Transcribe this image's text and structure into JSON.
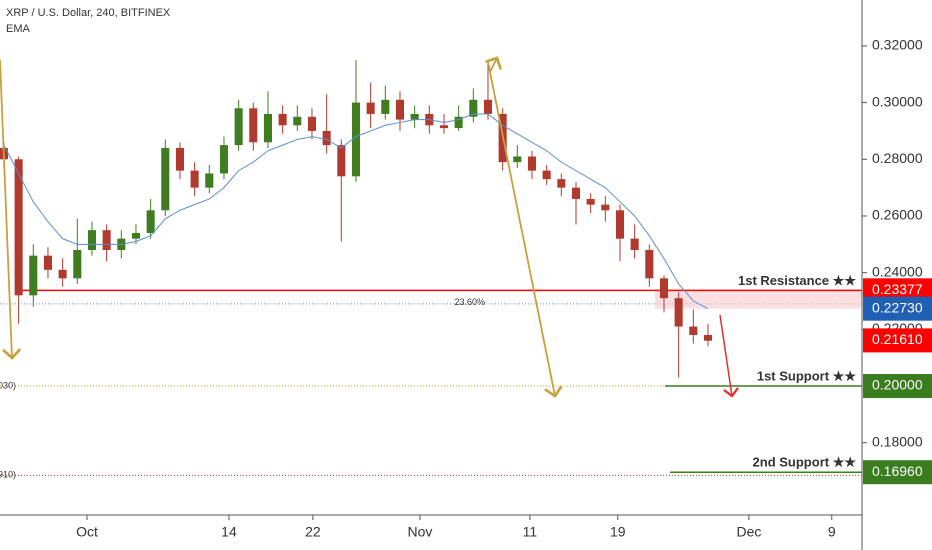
{
  "chart_data": {
    "type": "candlestick",
    "title": "XRP / U.S. Dollar, 240, BITFINEX",
    "up_color": "#3f7d20",
    "down_color": "#b03a2e",
    "candles": [
      [
        0.284,
        0.286,
        0.276,
        0.28
      ],
      [
        0.28,
        0.281,
        0.222,
        0.232
      ],
      [
        0.232,
        0.25,
        0.228,
        0.246
      ],
      [
        0.246,
        0.249,
        0.238,
        0.241
      ],
      [
        0.241,
        0.245,
        0.235,
        0.238
      ],
      [
        0.238,
        0.259,
        0.236,
        0.248
      ],
      [
        0.248,
        0.258,
        0.246,
        0.255
      ],
      [
        0.255,
        0.257,
        0.244,
        0.248
      ],
      [
        0.248,
        0.255,
        0.245,
        0.252
      ],
      [
        0.252,
        0.257,
        0.25,
        0.254
      ],
      [
        0.254,
        0.266,
        0.252,
        0.262
      ],
      [
        0.262,
        0.287,
        0.26,
        0.284
      ],
      [
        0.284,
        0.286,
        0.273,
        0.276
      ],
      [
        0.276,
        0.279,
        0.267,
        0.27
      ],
      [
        0.27,
        0.278,
        0.268,
        0.275
      ],
      [
        0.275,
        0.288,
        0.273,
        0.285
      ],
      [
        0.285,
        0.301,
        0.283,
        0.298
      ],
      [
        0.298,
        0.3,
        0.283,
        0.286
      ],
      [
        0.286,
        0.304,
        0.284,
        0.296
      ],
      [
        0.296,
        0.299,
        0.289,
        0.292
      ],
      [
        0.292,
        0.299,
        0.29,
        0.295
      ],
      [
        0.295,
        0.298,
        0.287,
        0.29
      ],
      [
        0.29,
        0.303,
        0.282,
        0.285
      ],
      [
        0.285,
        0.287,
        0.251,
        0.274
      ],
      [
        0.274,
        0.315,
        0.272,
        0.3
      ],
      [
        0.3,
        0.307,
        0.291,
        0.296
      ],
      [
        0.296,
        0.306,
        0.294,
        0.301
      ],
      [
        0.301,
        0.304,
        0.29,
        0.294
      ],
      [
        0.294,
        0.299,
        0.291,
        0.296
      ],
      [
        0.296,
        0.299,
        0.289,
        0.292
      ],
      [
        0.292,
        0.296,
        0.289,
        0.291
      ],
      [
        0.291,
        0.299,
        0.29,
        0.295
      ],
      [
        0.295,
        0.305,
        0.293,
        0.301
      ],
      [
        0.301,
        0.315,
        0.294,
        0.296
      ],
      [
        0.296,
        0.298,
        0.276,
        0.279
      ],
      [
        0.279,
        0.285,
        0.277,
        0.281
      ],
      [
        0.281,
        0.283,
        0.273,
        0.276
      ],
      [
        0.276,
        0.278,
        0.271,
        0.273
      ],
      [
        0.273,
        0.275,
        0.267,
        0.27
      ],
      [
        0.27,
        0.272,
        0.257,
        0.266
      ],
      [
        0.266,
        0.268,
        0.261,
        0.264
      ],
      [
        0.264,
        0.267,
        0.258,
        0.262
      ],
      [
        0.262,
        0.264,
        0.244,
        0.252
      ],
      [
        0.252,
        0.257,
        0.245,
        0.248
      ],
      [
        0.248,
        0.25,
        0.235,
        0.238
      ],
      [
        0.238,
        0.239,
        0.226,
        0.231
      ],
      [
        0.231,
        0.233,
        0.203,
        0.221
      ],
      [
        0.221,
        0.227,
        0.215,
        0.218
      ],
      [
        0.218,
        0.222,
        0.214,
        0.216
      ]
    ],
    "ema": {
      "name": "EMA",
      "color": "#5b8fd0",
      "last_label": "0.22730",
      "values": [
        0.285,
        0.275,
        0.265,
        0.258,
        0.252,
        0.25,
        0.25,
        0.25,
        0.25,
        0.251,
        0.253,
        0.259,
        0.262,
        0.264,
        0.266,
        0.27,
        0.276,
        0.279,
        0.283,
        0.285,
        0.287,
        0.288,
        0.287,
        0.284,
        0.288,
        0.29,
        0.292,
        0.293,
        0.294,
        0.294,
        0.293,
        0.294,
        0.296,
        0.296,
        0.292,
        0.289,
        0.286,
        0.283,
        0.279,
        0.276,
        0.273,
        0.27,
        0.265,
        0.26,
        0.253,
        0.245,
        0.236,
        0.23,
        0.2273
      ]
    },
    "price": {
      "value": 0.2161,
      "label": "0.21610",
      "color": "#ff0000"
    },
    "levels": [
      {
        "label": "1st Resistance ★★",
        "value": 0.23377,
        "value_label": "0.23377",
        "color": "#ff0000"
      },
      {
        "label": "1st Support ★★",
        "value": 0.2,
        "value_label": "0.20000",
        "color": "#3a7d1e"
      },
      {
        "label": "2nd Support ★★",
        "value": 0.1696,
        "value_label": "0.16960",
        "color": "#3a7d1e"
      }
    ],
    "fib": {
      "label": "23.60%",
      "value": 0.229,
      "color": "#5b8fd0"
    },
    "dotted_levels": [
      {
        "label": "030)",
        "value": 0.2,
        "color": "#c8961e"
      },
      {
        "label": "910)",
        "value": 0.1685,
        "color": "#d03030"
      }
    ],
    "xlim": [
      -0.27,
      58.5
    ],
    "xticks": [
      {
        "value": 5.66,
        "label": "Oct"
      },
      {
        "value": 15.34,
        "label": "14"
      },
      {
        "value": 21.06,
        "label": "22"
      },
      {
        "value": 28.36,
        "label": "Nov"
      },
      {
        "value": 35.86,
        "label": "11"
      },
      {
        "value": 41.85,
        "label": "19"
      },
      {
        "value": 50.79,
        "label": "Dec"
      },
      {
        "value": 56.44,
        "label": "9"
      }
    ],
    "ylim": [
      0.1545,
      0.3362
    ],
    "yticks": [
      {
        "value": 0.32,
        "label": "0.32000"
      },
      {
        "value": 0.3,
        "label": "0.30000"
      },
      {
        "value": 0.28,
        "label": "0.28000"
      },
      {
        "value": 0.26,
        "label": "0.26000"
      },
      {
        "value": 0.24,
        "label": "0.24000"
      },
      {
        "value": 0.22,
        "label": "0.22000"
      },
      {
        "value": 0.18,
        "label": "0.18000"
      }
    ]
  }
}
